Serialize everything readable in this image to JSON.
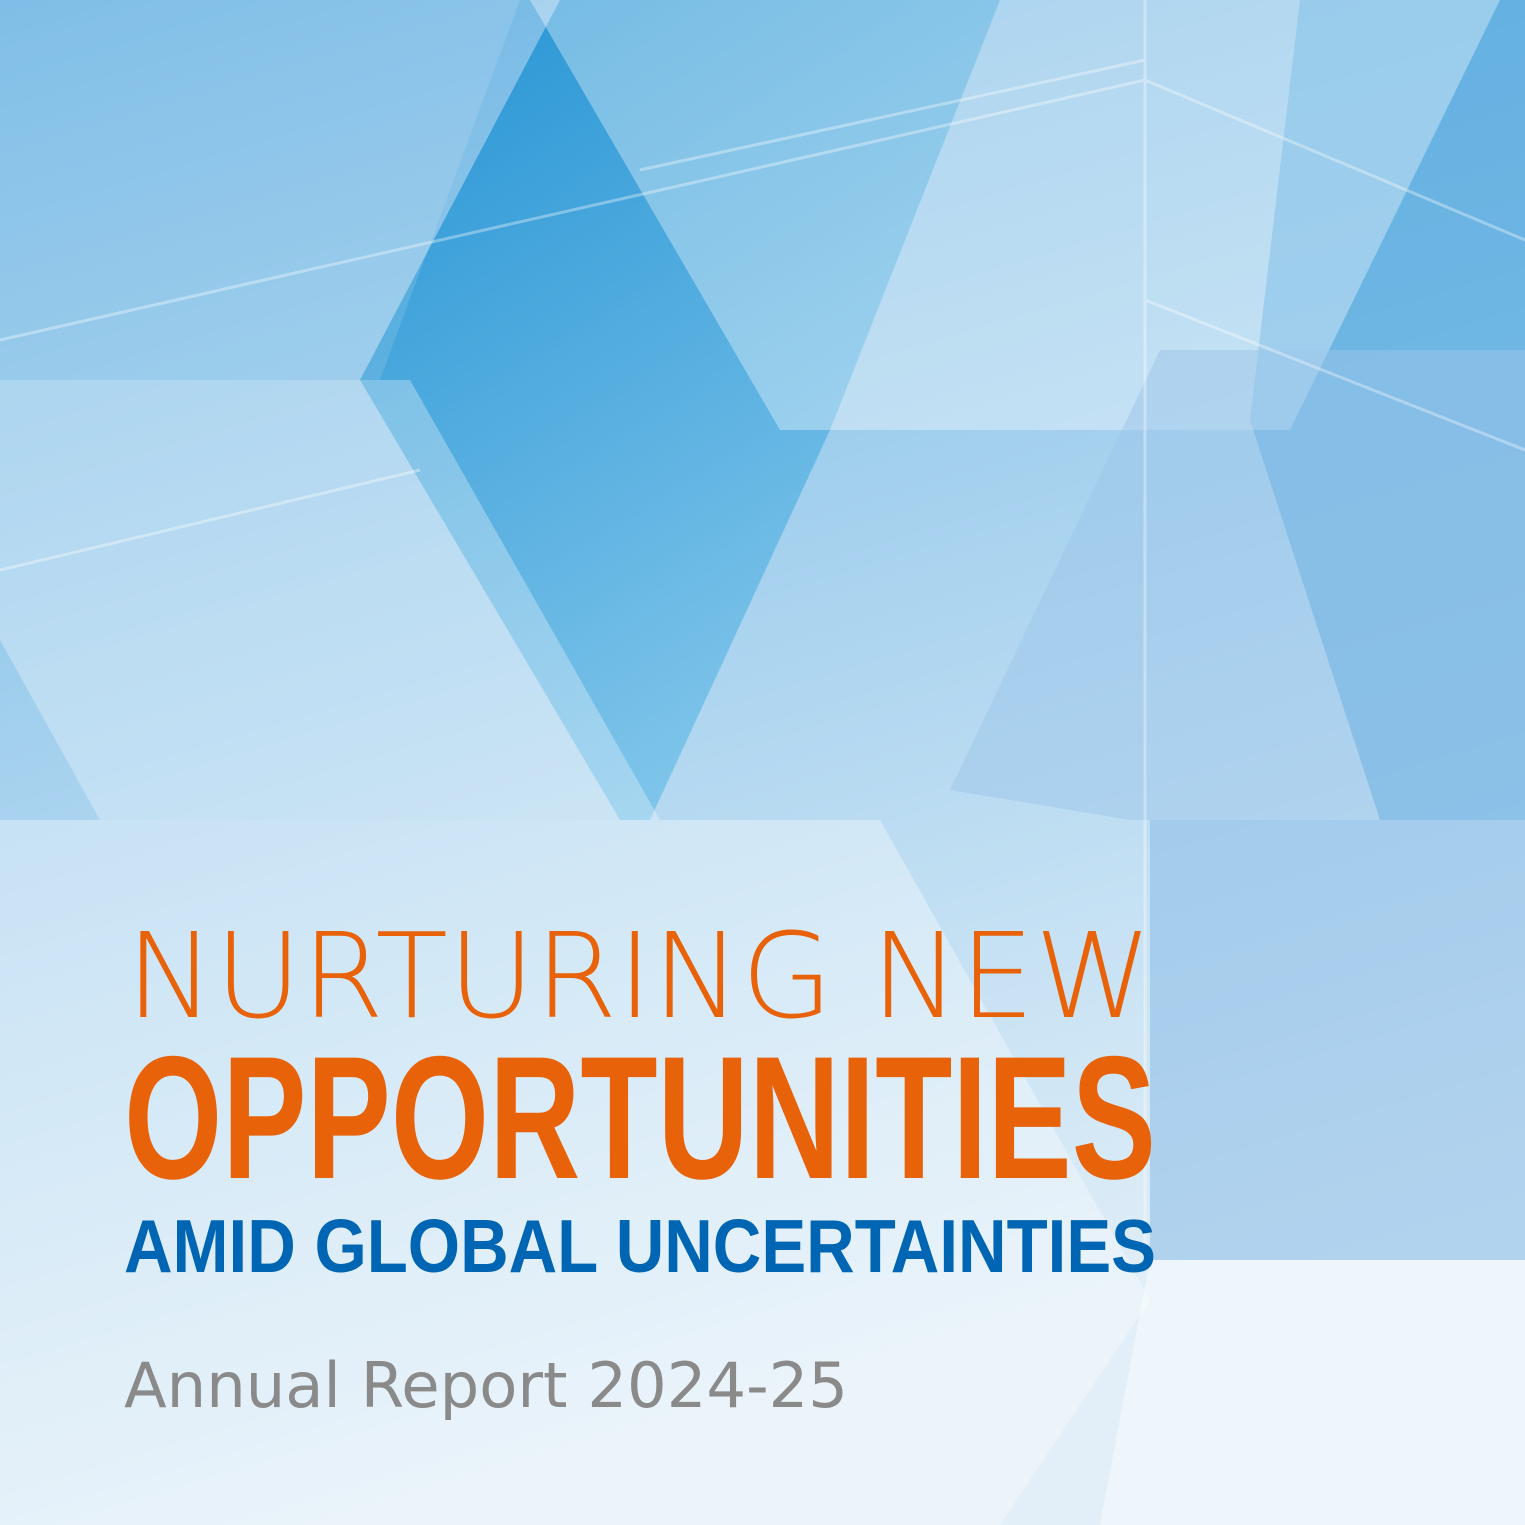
{
  "cover": {
    "title_line1": "NURTURING NEW",
    "title_line2": "OPPORTUNITIES",
    "title_line3": "AMID GLOBAL UNCERTAINTIES",
    "subtitle": "Annual Report 2024-25"
  },
  "colors": {
    "orange": "#e8620a",
    "blue": "#0065b3",
    "gray": "#8a8a8a",
    "sky": "#2ba3db"
  }
}
